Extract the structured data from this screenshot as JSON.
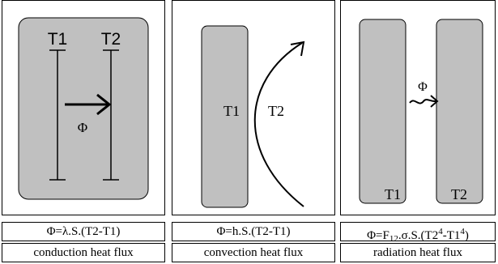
{
  "panels": [
    {
      "id": "conduction",
      "labels": {
        "t1": "T1",
        "t2": "T2",
        "flux": "Φ"
      },
      "formula": {
        "prefix": "Φ=λ.S.(T2-T1)"
      },
      "caption": "conduction heat flux"
    },
    {
      "id": "convection",
      "labels": {
        "t1": "T1",
        "t2": "T2"
      },
      "formula": {
        "prefix": "Φ=h.S.(T2-T1)"
      },
      "caption": "convection heat flux"
    },
    {
      "id": "radiation",
      "labels": {
        "t1": "T1",
        "t2": "T2",
        "flux": "Φ"
      },
      "formula": {
        "prefix": "Φ=F",
        "sub": "12",
        "mid": ".σ.S.(T2",
        "sup1": "4",
        "mid2": "-T1",
        "sup2": "4",
        "suffix": ")"
      },
      "caption": "radiation heat flux"
    }
  ],
  "colors": {
    "plate": "#c0c0c0",
    "line": "#000000",
    "background": "#ffffff"
  }
}
